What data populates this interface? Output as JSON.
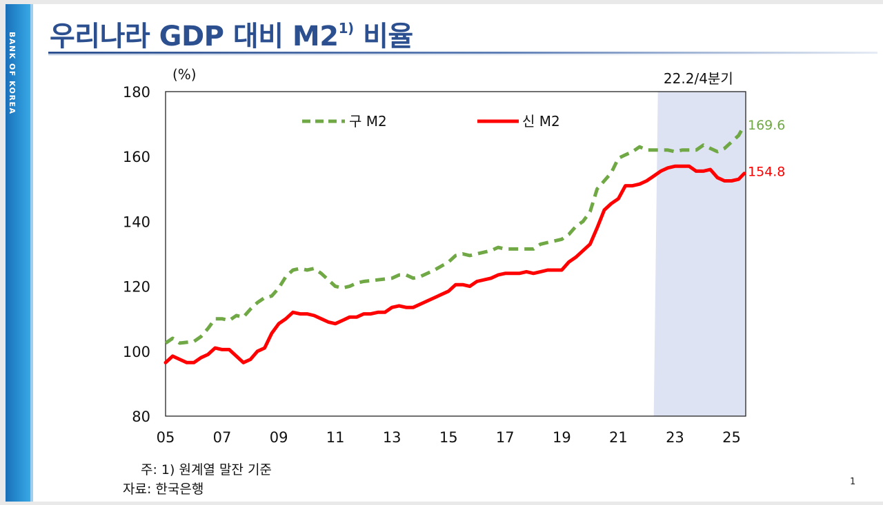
{
  "brand": "BANK OF KOREA",
  "slide": {
    "title": "우리나라 GDP 대비 M2",
    "title_sup": "1)",
    "title_suffix": " 비율",
    "note": "주: 1) 원계열 말잔 기준",
    "source": "자료: 한국은행",
    "page_number": "1"
  },
  "colors": {
    "old_m2": "#70a845",
    "new_m2": "#ff0000",
    "shade": "#dde3f3",
    "title": "#2b4f8f"
  },
  "chart_data": {
    "type": "line",
    "title": "",
    "ylabel": "(%)",
    "xlabel": "",
    "ylim": [
      80,
      180
    ],
    "xlim": [
      2005,
      2025.5
    ],
    "y_ticks": [
      {
        "value": 80,
        "label": "80"
      },
      {
        "value": 100,
        "label": "100"
      },
      {
        "value": 120,
        "label": "120"
      },
      {
        "value": 140,
        "label": "140"
      },
      {
        "value": 160,
        "label": "160"
      },
      {
        "value": 180,
        "label": "180"
      }
    ],
    "x_ticks": [
      {
        "value": 2005,
        "label": "05"
      },
      {
        "value": 2007,
        "label": "07"
      },
      {
        "value": 2009,
        "label": "09"
      },
      {
        "value": 2011,
        "label": "11"
      },
      {
        "value": 2013,
        "label": "13"
      },
      {
        "value": 2015,
        "label": "15"
      },
      {
        "value": 2017,
        "label": "17"
      },
      {
        "value": 2019,
        "label": "19"
      },
      {
        "value": 2021,
        "label": "21"
      },
      {
        "value": 2023,
        "label": "23"
      },
      {
        "value": 2025,
        "label": "25"
      }
    ],
    "shaded_region": {
      "from": 2022.25,
      "to": 2025.5,
      "label": "22.2/4분기"
    },
    "series": [
      {
        "name": "구 M2",
        "style": "dashed",
        "end_label": "169.6",
        "points": [
          [
            2005.0,
            102.5
          ],
          [
            2005.25,
            104.0
          ],
          [
            2005.5,
            102.5
          ],
          [
            2006.0,
            103.0
          ],
          [
            2006.25,
            104.5
          ],
          [
            2006.5,
            107.0
          ],
          [
            2006.75,
            110.0
          ],
          [
            2007.0,
            110.0
          ],
          [
            2007.25,
            109.5
          ],
          [
            2007.5,
            111.0
          ],
          [
            2007.75,
            110.5
          ],
          [
            2008.0,
            113.0
          ],
          [
            2008.25,
            115.0
          ],
          [
            2008.5,
            116.5
          ],
          [
            2008.75,
            117.0
          ],
          [
            2009.0,
            119.5
          ],
          [
            2009.25,
            123.0
          ],
          [
            2009.5,
            125.0
          ],
          [
            2009.75,
            125.5
          ],
          [
            2010.0,
            125.0
          ],
          [
            2010.25,
            125.5
          ],
          [
            2010.5,
            124.0
          ],
          [
            2010.75,
            122.0
          ],
          [
            2011.0,
            120.0
          ],
          [
            2011.25,
            119.5
          ],
          [
            2011.5,
            120.0
          ],
          [
            2011.75,
            121.0
          ],
          [
            2012.0,
            121.5
          ],
          [
            2012.5,
            122.0
          ],
          [
            2013.0,
            122.5
          ],
          [
            2013.25,
            123.5
          ],
          [
            2013.5,
            123.5
          ],
          [
            2013.75,
            122.5
          ],
          [
            2014.0,
            123.0
          ],
          [
            2014.5,
            125.0
          ],
          [
            2015.0,
            127.5
          ],
          [
            2015.25,
            129.5
          ],
          [
            2015.5,
            130.0
          ],
          [
            2015.75,
            129.5
          ],
          [
            2016.0,
            130.0
          ],
          [
            2016.5,
            131.0
          ],
          [
            2016.75,
            132.0
          ],
          [
            2017.0,
            131.5
          ],
          [
            2017.5,
            131.5
          ],
          [
            2018.0,
            131.5
          ],
          [
            2018.25,
            133.0
          ],
          [
            2018.5,
            133.5
          ],
          [
            2019.0,
            134.5
          ],
          [
            2019.25,
            136.0
          ],
          [
            2019.5,
            138.5
          ],
          [
            2019.75,
            140.0
          ],
          [
            2020.0,
            143.0
          ],
          [
            2020.25,
            150.0
          ],
          [
            2020.5,
            152.5
          ],
          [
            2020.75,
            155.0
          ],
          [
            2021.0,
            159.5
          ],
          [
            2021.25,
            160.5
          ],
          [
            2021.5,
            161.5
          ],
          [
            2021.75,
            163.0
          ],
          [
            2022.0,
            162.0
          ],
          [
            2022.25,
            162.0
          ],
          [
            2022.5,
            162.0
          ],
          [
            2022.75,
            162.0
          ],
          [
            2023.0,
            161.5
          ],
          [
            2023.25,
            162.0
          ],
          [
            2023.5,
            162.0
          ],
          [
            2023.75,
            162.0
          ],
          [
            2024.0,
            163.5
          ],
          [
            2024.25,
            162.5
          ],
          [
            2024.5,
            161.5
          ],
          [
            2024.75,
            162.5
          ],
          [
            2025.0,
            164.5
          ],
          [
            2025.25,
            166.5
          ],
          [
            2025.45,
            169.6
          ]
        ]
      },
      {
        "name": "신 M2",
        "style": "solid",
        "end_label": "154.8",
        "points": [
          [
            2005.0,
            96.5
          ],
          [
            2005.25,
            98.5
          ],
          [
            2005.5,
            97.5
          ],
          [
            2005.75,
            96.5
          ],
          [
            2006.0,
            96.5
          ],
          [
            2006.25,
            98.0
          ],
          [
            2006.5,
            99.0
          ],
          [
            2006.75,
            101.0
          ],
          [
            2007.0,
            100.5
          ],
          [
            2007.25,
            100.5
          ],
          [
            2007.5,
            98.5
          ],
          [
            2007.75,
            96.5
          ],
          [
            2008.0,
            97.5
          ],
          [
            2008.25,
            100.0
          ],
          [
            2008.5,
            101.0
          ],
          [
            2008.75,
            105.5
          ],
          [
            2009.0,
            108.5
          ],
          [
            2009.25,
            110.0
          ],
          [
            2009.5,
            112.0
          ],
          [
            2009.75,
            111.5
          ],
          [
            2010.0,
            111.5
          ],
          [
            2010.25,
            111.0
          ],
          [
            2010.5,
            110.0
          ],
          [
            2010.75,
            109.0
          ],
          [
            2011.0,
            108.5
          ],
          [
            2011.25,
            109.5
          ],
          [
            2011.5,
            110.5
          ],
          [
            2011.75,
            110.5
          ],
          [
            2012.0,
            111.5
          ],
          [
            2012.25,
            111.5
          ],
          [
            2012.5,
            112.0
          ],
          [
            2012.75,
            112.0
          ],
          [
            2013.0,
            113.5
          ],
          [
            2013.25,
            114.0
          ],
          [
            2013.5,
            113.5
          ],
          [
            2013.75,
            113.5
          ],
          [
            2014.0,
            114.5
          ],
          [
            2014.5,
            116.5
          ],
          [
            2015.0,
            118.5
          ],
          [
            2015.25,
            120.5
          ],
          [
            2015.5,
            120.5
          ],
          [
            2015.75,
            120.0
          ],
          [
            2016.0,
            121.5
          ],
          [
            2016.5,
            122.5
          ],
          [
            2016.75,
            123.5
          ],
          [
            2017.0,
            124.0
          ],
          [
            2017.5,
            124.0
          ],
          [
            2017.75,
            124.5
          ],
          [
            2018.0,
            124.0
          ],
          [
            2018.25,
            124.5
          ],
          [
            2018.5,
            125.0
          ],
          [
            2018.75,
            125.0
          ],
          [
            2019.0,
            125.0
          ],
          [
            2019.25,
            127.5
          ],
          [
            2019.5,
            129.0
          ],
          [
            2019.75,
            131.0
          ],
          [
            2020.0,
            133.0
          ],
          [
            2020.25,
            138.0
          ],
          [
            2020.5,
            143.5
          ],
          [
            2020.75,
            145.5
          ],
          [
            2021.0,
            147.0
          ],
          [
            2021.25,
            151.0
          ],
          [
            2021.5,
            151.0
          ],
          [
            2021.75,
            151.5
          ],
          [
            2022.0,
            152.5
          ],
          [
            2022.25,
            154.0
          ],
          [
            2022.5,
            155.5
          ],
          [
            2022.75,
            156.5
          ],
          [
            2023.0,
            157.0
          ],
          [
            2023.25,
            157.0
          ],
          [
            2023.5,
            157.0
          ],
          [
            2023.75,
            155.5
          ],
          [
            2024.0,
            155.5
          ],
          [
            2024.25,
            156.0
          ],
          [
            2024.5,
            153.5
          ],
          [
            2024.75,
            152.5
          ],
          [
            2025.0,
            152.5
          ],
          [
            2025.25,
            153.0
          ],
          [
            2025.45,
            154.8
          ]
        ]
      }
    ]
  }
}
